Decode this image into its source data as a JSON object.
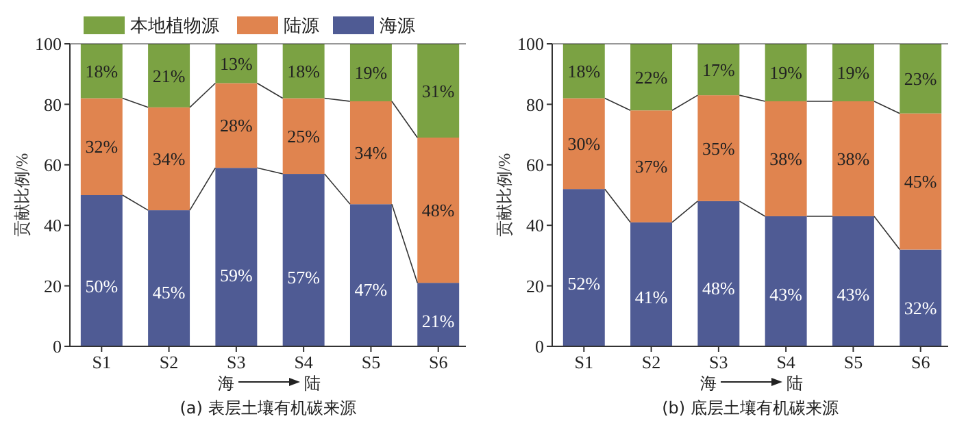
{
  "chart_data": [
    {
      "type": "bar",
      "stacked": true,
      "title": "(a) 表层土壤有机碳来源",
      "ylabel": "贡献比例/%",
      "annotations": [
        "海",
        "陆"
      ],
      "categories": [
        "S1",
        "S2",
        "S3",
        "S4",
        "S5",
        "S6"
      ],
      "ylim": [
        0,
        100
      ],
      "yticks": [
        0,
        20,
        40,
        60,
        80,
        100
      ],
      "legend": "top",
      "series": [
        {
          "name": "海源",
          "color": "#4f5b94",
          "values": [
            50,
            45,
            59,
            57,
            47,
            21
          ],
          "value_labels": [
            "50%",
            "45%",
            "59%",
            "57%",
            "47%",
            "21%"
          ]
        },
        {
          "name": "陆源",
          "color": "#e0844f",
          "values": [
            32,
            34,
            28,
            25,
            34,
            48
          ],
          "value_labels": [
            "32%",
            "34%",
            "28%",
            "25%",
            "34%",
            "48%"
          ]
        },
        {
          "name": "本地植物源",
          "color": "#7ba243",
          "values": [
            18,
            21,
            13,
            18,
            19,
            31
          ],
          "value_labels": [
            "18%",
            "21%",
            "13%",
            "18%",
            "19%",
            "31%"
          ]
        }
      ]
    },
    {
      "type": "bar",
      "stacked": true,
      "title": "(b) 底层土壤有机碳来源",
      "ylabel": "贡献比例/%",
      "annotations": [
        "海",
        "陆"
      ],
      "categories": [
        "S1",
        "S2",
        "S3",
        "S4",
        "S5",
        "S6"
      ],
      "ylim": [
        0,
        100
      ],
      "yticks": [
        0,
        20,
        40,
        60,
        80,
        100
      ],
      "series": [
        {
          "color": "#4f5b94",
          "values": [
            52,
            41,
            48,
            43,
            43,
            32
          ],
          "value_labels": [
            "52%",
            "41%",
            "48%",
            "43%",
            "43%",
            "32%"
          ]
        },
        {
          "color": "#e0844f",
          "values": [
            30,
            37,
            35,
            38,
            38,
            45
          ],
          "value_labels": [
            "30%",
            "37%",
            "35%",
            "38%",
            "38%",
            "45%"
          ]
        },
        {
          "color": "#7ba243",
          "values": [
            18,
            22,
            17,
            19,
            19,
            23
          ],
          "value_labels": [
            "18%",
            "22%",
            "17%",
            "19%",
            "19%",
            "23%"
          ]
        }
      ]
    }
  ]
}
